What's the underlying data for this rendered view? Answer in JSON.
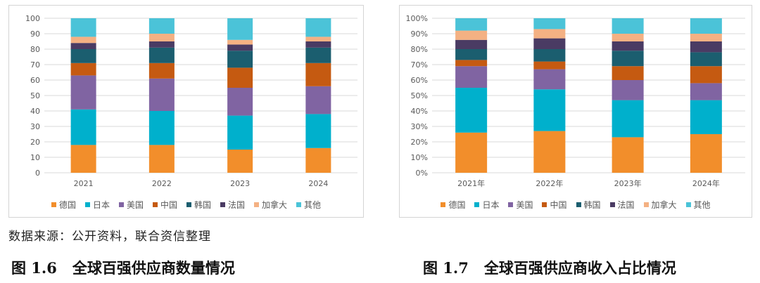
{
  "colors": {
    "德国": "#F28E2B",
    "日本": "#00B0CC",
    "美国": "#8064A2",
    "中国": "#C55A11",
    "韩国": "#1B5E6F",
    "法国": "#4A3B63",
    "加拿大": "#F4B183",
    "其他": "#4BC3D8"
  },
  "chart_data": [
    {
      "type": "bar",
      "stacked": true,
      "categories": [
        "2021",
        "2022",
        "2023",
        "2024"
      ],
      "ylim": [
        0,
        100
      ],
      "yticks": [
        "0",
        "10",
        "20",
        "30",
        "40",
        "50",
        "60",
        "70",
        "80",
        "90",
        "100"
      ],
      "legend_position": "bottom",
      "grid": true,
      "series": [
        {
          "name": "德国",
          "values": [
            18,
            18,
            15,
            16
          ]
        },
        {
          "name": "日本",
          "values": [
            23,
            22,
            22,
            22
          ]
        },
        {
          "name": "美国",
          "values": [
            22,
            21,
            18,
            18
          ]
        },
        {
          "name": "中国",
          "values": [
            8,
            10,
            13,
            15
          ]
        },
        {
          "name": "韩国",
          "values": [
            9,
            10,
            11,
            10
          ]
        },
        {
          "name": "法国",
          "values": [
            4,
            4,
            4,
            4
          ]
        },
        {
          "name": "加拿大",
          "values": [
            4,
            5,
            3,
            3
          ]
        },
        {
          "name": "其他",
          "values": [
            12,
            10,
            14,
            12
          ]
        }
      ]
    },
    {
      "type": "bar",
      "stacked": true,
      "percent": true,
      "categories": [
        "2021年",
        "2022年",
        "2023年",
        "2024年"
      ],
      "ylim": [
        0,
        100
      ],
      "yticks": [
        "0%",
        "10%",
        "20%",
        "30%",
        "40%",
        "50%",
        "60%",
        "70%",
        "80%",
        "90%",
        "100%"
      ],
      "legend_position": "bottom",
      "grid": true,
      "series": [
        {
          "name": "德国",
          "values": [
            26,
            27,
            23,
            25
          ]
        },
        {
          "name": "日本",
          "values": [
            29,
            27,
            24,
            22
          ]
        },
        {
          "name": "美国",
          "values": [
            14,
            13,
            13,
            11
          ]
        },
        {
          "name": "中国",
          "values": [
            4,
            5,
            9,
            11
          ]
        },
        {
          "name": "韩国",
          "values": [
            7,
            8,
            10,
            9
          ]
        },
        {
          "name": "法国",
          "values": [
            6,
            7,
            6,
            7
          ]
        },
        {
          "name": "加拿大",
          "values": [
            6,
            6,
            5,
            5
          ]
        },
        {
          "name": "其他",
          "values": [
            8,
            7,
            10,
            10
          ]
        }
      ]
    }
  ],
  "source_note": "数据来源：公开资料，联合资信整理",
  "captions": [
    {
      "num": "图 1.6",
      "text": "全球百强供应商数量情况"
    },
    {
      "num": "图 1.7",
      "text": "全球百强供应商收入占比情况"
    }
  ]
}
